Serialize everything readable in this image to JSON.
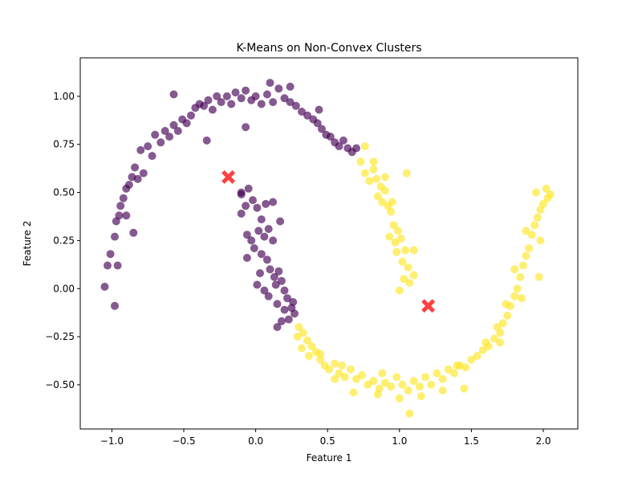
{
  "chart_data": {
    "type": "scatter",
    "title": "K-Means on Non-Convex Clusters",
    "xlabel": "Feature 1",
    "ylabel": "Feature 2",
    "xlim": [
      -1.22,
      2.24
    ],
    "ylim": [
      -0.73,
      1.2
    ],
    "xticks": [
      -1.0,
      -0.5,
      0.0,
      0.5,
      1.0,
      1.5,
      2.0
    ],
    "xtick_labels": [
      "−1.0",
      "−0.5",
      "0.0",
      "0.5",
      "1.0",
      "1.5",
      "2.0"
    ],
    "yticks": [
      -0.5,
      -0.25,
      0.0,
      0.25,
      0.5,
      0.75,
      1.0
    ],
    "ytick_labels": [
      "−0.50",
      "−0.25",
      "0.00",
      "0.25",
      "0.50",
      "0.75",
      "1.00"
    ],
    "grid": false,
    "legend": "none",
    "series": [
      {
        "color": "#440154",
        "marker": "circle",
        "alpha": 0.65,
        "points": [
          [
            -1.05,
            0.01
          ],
          [
            -1.03,
            0.12
          ],
          [
            -1.01,
            0.18
          ],
          [
            -0.98,
            0.27
          ],
          [
            -0.97,
            0.35
          ],
          [
            -0.95,
            0.38
          ],
          [
            -0.94,
            0.43
          ],
          [
            -0.92,
            0.47
          ],
          [
            -0.9,
            0.52
          ],
          [
            -0.88,
            0.54
          ],
          [
            -0.86,
            0.58
          ],
          [
            -0.84,
            0.63
          ],
          [
            -0.82,
            0.57
          ],
          [
            -0.8,
            0.72
          ],
          [
            -0.78,
            0.6
          ],
          [
            -0.75,
            0.74
          ],
          [
            -0.72,
            0.69
          ],
          [
            -0.7,
            0.8
          ],
          [
            -0.66,
            0.76
          ],
          [
            -0.63,
            0.82
          ],
          [
            -0.6,
            0.79
          ],
          [
            -0.57,
            0.85
          ],
          [
            -0.54,
            0.82
          ],
          [
            -0.51,
            0.88
          ],
          [
            -0.48,
            0.86
          ],
          [
            -0.45,
            0.9
          ],
          [
            -0.42,
            0.94
          ],
          [
            -0.39,
            0.96
          ],
          [
            -0.36,
            0.95
          ],
          [
            -0.33,
            0.98
          ],
          [
            -0.3,
            0.93
          ],
          [
            -0.27,
            1.0
          ],
          [
            -0.24,
            0.97
          ],
          [
            -0.2,
            1.0
          ],
          [
            -0.17,
            0.96
          ],
          [
            -0.14,
            1.02
          ],
          [
            -0.1,
            0.99
          ],
          [
            -0.07,
            1.03
          ],
          [
            -0.03,
            0.98
          ],
          [
            0.0,
            1.0
          ],
          [
            0.04,
            0.96
          ],
          [
            0.08,
            1.01
          ],
          [
            0.12,
            0.97
          ],
          [
            0.16,
            1.04
          ],
          [
            0.2,
            0.99
          ],
          [
            0.24,
            0.97
          ],
          [
            0.28,
            0.95
          ],
          [
            0.32,
            0.92
          ],
          [
            0.36,
            0.9
          ],
          [
            0.4,
            0.88
          ],
          [
            0.43,
            0.86
          ],
          [
            0.46,
            0.83
          ],
          [
            0.49,
            0.8
          ],
          [
            0.52,
            0.79
          ],
          [
            0.55,
            0.76
          ],
          [
            0.58,
            0.74
          ],
          [
            0.61,
            0.77
          ],
          [
            0.64,
            0.73
          ],
          [
            0.67,
            0.71
          ],
          [
            0.7,
            0.73
          ],
          [
            0.44,
            0.93
          ],
          [
            0.24,
            1.05
          ],
          [
            0.1,
            1.07
          ],
          [
            -0.07,
            0.84
          ],
          [
            -0.34,
            0.77
          ],
          [
            -0.57,
            1.01
          ],
          [
            -0.85,
            0.29
          ],
          [
            -0.98,
            -0.09
          ],
          [
            -0.96,
            0.12
          ],
          [
            -0.9,
            0.38
          ],
          [
            -0.05,
            0.52
          ],
          [
            -0.1,
            0.49
          ],
          [
            -0.07,
            0.43
          ],
          [
            -0.1,
            0.39
          ],
          [
            -0.02,
            0.46
          ],
          [
            0.01,
            0.42
          ],
          [
            0.04,
            0.36
          ],
          [
            0.02,
            0.3
          ],
          [
            -0.03,
            0.25
          ],
          [
            0.06,
            0.27
          ],
          [
            0.09,
            0.31
          ],
          [
            0.12,
            0.25
          ],
          [
            -0.01,
            0.21
          ],
          [
            0.04,
            0.18
          ],
          [
            0.08,
            0.15
          ],
          [
            -0.06,
            0.16
          ],
          [
            0.1,
            0.1
          ],
          [
            0.13,
            0.06
          ],
          [
            0.16,
            0.09
          ],
          [
            0.18,
            0.04
          ],
          [
            0.2,
            -0.01
          ],
          [
            0.03,
            0.08
          ],
          [
            0.06,
            -0.01
          ],
          [
            0.17,
            0.35
          ],
          [
            0.22,
            -0.05
          ],
          [
            0.25,
            -0.1
          ],
          [
            0.27,
            -0.13
          ],
          [
            0.23,
            -0.16
          ],
          [
            0.18,
            -0.17
          ],
          [
            0.14,
            0.02
          ],
          [
            0.09,
            -0.04
          ],
          [
            0.15,
            -0.08
          ],
          [
            0.26,
            -0.07
          ],
          [
            0.12,
            0.45
          ],
          [
            -0.1,
            0.5
          ],
          [
            -0.06,
            0.28
          ],
          [
            0.07,
            0.44
          ],
          [
            0.01,
            0.02
          ],
          [
            0.2,
            -0.11
          ],
          [
            0.15,
            -0.2
          ]
        ]
      },
      {
        "color": "#fde725",
        "marker": "circle",
        "alpha": 0.65,
        "points": [
          [
            0.76,
            0.74
          ],
          [
            0.73,
            0.66
          ],
          [
            0.76,
            0.6
          ],
          [
            0.79,
            0.56
          ],
          [
            0.82,
            0.62
          ],
          [
            0.84,
            0.57
          ],
          [
            0.87,
            0.53
          ],
          [
            0.85,
            0.48
          ],
          [
            0.88,
            0.45
          ],
          [
            0.9,
            0.51
          ],
          [
            0.92,
            0.43
          ],
          [
            0.9,
            0.58
          ],
          [
            0.94,
            0.4
          ],
          [
            0.96,
            0.33
          ],
          [
            0.93,
            0.27
          ],
          [
            0.97,
            0.24
          ],
          [
            0.99,
            0.3
          ],
          [
            1.01,
            0.26
          ],
          [
            0.98,
            0.19
          ],
          [
            1.02,
            0.14
          ],
          [
            1.04,
            0.2
          ],
          [
            1.06,
            0.11
          ],
          [
            1.03,
            0.05
          ],
          [
            1.07,
            0.03
          ],
          [
            1.0,
            -0.01
          ],
          [
            1.1,
            0.2
          ],
          [
            1.05,
            0.6
          ],
          [
            0.82,
            0.66
          ],
          [
            0.95,
            0.45
          ],
          [
            1.1,
            0.07
          ],
          [
            0.3,
            -0.2
          ],
          [
            0.33,
            -0.23
          ],
          [
            0.36,
            -0.27
          ],
          [
            0.39,
            -0.3
          ],
          [
            0.42,
            -0.33
          ],
          [
            0.45,
            -0.37
          ],
          [
            0.48,
            -0.4
          ],
          [
            0.51,
            -0.42
          ],
          [
            0.55,
            -0.39
          ],
          [
            0.58,
            -0.44
          ],
          [
            0.62,
            -0.46
          ],
          [
            0.66,
            -0.42
          ],
          [
            0.7,
            -0.47
          ],
          [
            0.74,
            -0.45
          ],
          [
            0.78,
            -0.5
          ],
          [
            0.82,
            -0.48
          ],
          [
            0.86,
            -0.52
          ],
          [
            0.9,
            -0.49
          ],
          [
            0.94,
            -0.51
          ],
          [
            0.98,
            -0.46
          ],
          [
            1.02,
            -0.5
          ],
          [
            1.06,
            -0.53
          ],
          [
            1.1,
            -0.48
          ],
          [
            1.14,
            -0.51
          ],
          [
            1.18,
            -0.46
          ],
          [
            1.22,
            -0.5
          ],
          [
            1.26,
            -0.44
          ],
          [
            1.3,
            -0.47
          ],
          [
            1.34,
            -0.42
          ],
          [
            1.38,
            -0.44
          ],
          [
            1.42,
            -0.4
          ],
          [
            1.46,
            -0.41
          ],
          [
            1.5,
            -0.37
          ],
          [
            1.54,
            -0.35
          ],
          [
            1.58,
            -0.32
          ],
          [
            1.62,
            -0.3
          ],
          [
            1.66,
            -0.26
          ],
          [
            1.7,
            -0.23
          ],
          [
            1.72,
            -0.18
          ],
          [
            1.75,
            -0.14
          ],
          [
            1.77,
            -0.09
          ],
          [
            1.8,
            -0.04
          ],
          [
            1.82,
            0.0
          ],
          [
            1.84,
            0.06
          ],
          [
            1.86,
            0.12
          ],
          [
            1.88,
            0.17
          ],
          [
            1.9,
            0.21
          ],
          [
            1.92,
            0.28
          ],
          [
            1.94,
            0.33
          ],
          [
            1.96,
            0.37
          ],
          [
            1.98,
            0.41
          ],
          [
            2.0,
            0.44
          ],
          [
            2.03,
            0.47
          ],
          [
            2.05,
            0.49
          ],
          [
            2.02,
            0.52
          ],
          [
            1.95,
            0.5
          ],
          [
            1.97,
            0.06
          ],
          [
            1.98,
            0.25
          ],
          [
            1.88,
            0.3
          ],
          [
            1.8,
            0.1
          ],
          [
            1.74,
            -0.08
          ],
          [
            1.68,
            -0.2
          ],
          [
            1.6,
            -0.28
          ],
          [
            1.45,
            -0.52
          ],
          [
            1.3,
            -0.53
          ],
          [
            1.15,
            -0.56
          ],
          [
            1.0,
            -0.57
          ],
          [
            0.85,
            -0.55
          ],
          [
            0.68,
            -0.54
          ],
          [
            0.55,
            -0.47
          ],
          [
            1.07,
            -0.65
          ],
          [
            0.45,
            -0.34
          ],
          [
            0.37,
            -0.35
          ],
          [
            0.32,
            -0.31
          ],
          [
            0.29,
            -0.25
          ],
          [
            1.85,
            -0.05
          ],
          [
            1.7,
            -0.28
          ],
          [
            1.4,
            -0.4
          ],
          [
            0.6,
            -0.4
          ],
          [
            0.88,
            -0.44
          ]
        ]
      }
    ],
    "centroids": {
      "color": "#ff0000",
      "marker": "X",
      "points": [
        [
          -0.19,
          0.58
        ],
        [
          1.2,
          -0.09
        ]
      ]
    }
  }
}
